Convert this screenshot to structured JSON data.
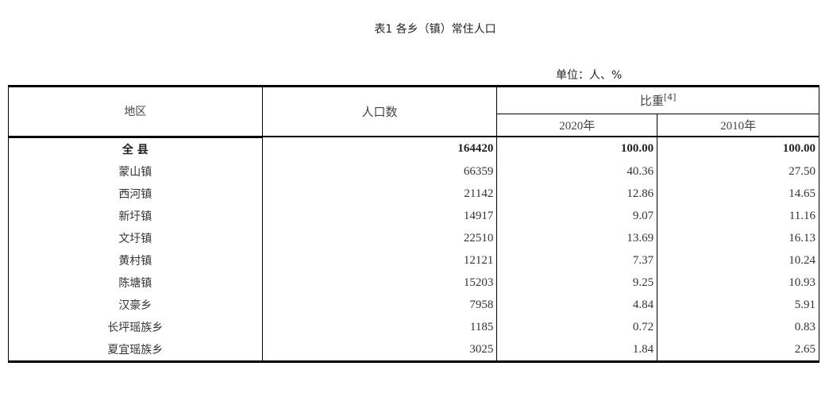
{
  "title": "表1  各乡（镇）常住人口",
  "unit": "单位：人、%",
  "headers": {
    "region": "地区",
    "population": "人口数",
    "share": "比重",
    "share_note": "[4]",
    "y2020": "2020年",
    "y2010": "2010年"
  },
  "rows": [
    {
      "name": "全 县",
      "pop": "164420",
      "s2020": "100.00",
      "s2010": "100.00"
    },
    {
      "name": "蒙山镇",
      "pop": "66359",
      "s2020": "40.36",
      "s2010": "27.50"
    },
    {
      "name": "西河镇",
      "pop": "21142",
      "s2020": "12.86",
      "s2010": "14.65"
    },
    {
      "name": "新圩镇",
      "pop": "14917",
      "s2020": "9.07",
      "s2010": "11.16"
    },
    {
      "name": "文圩镇",
      "pop": "22510",
      "s2020": "13.69",
      "s2010": "16.13"
    },
    {
      "name": "黄村镇",
      "pop": "12121",
      "s2020": "7.37",
      "s2010": "10.24"
    },
    {
      "name": "陈塘镇",
      "pop": "15203",
      "s2020": "9.25",
      "s2010": "10.93"
    },
    {
      "name": "汉豪乡",
      "pop": "7958",
      "s2020": "4.84",
      "s2010": "5.91"
    },
    {
      "name": "长坪瑶族乡",
      "pop": "1185",
      "s2020": "0.72",
      "s2010": "0.83"
    },
    {
      "name": "夏宜瑶族乡",
      "pop": "3025",
      "s2020": "1.84",
      "s2010": "2.65"
    }
  ]
}
